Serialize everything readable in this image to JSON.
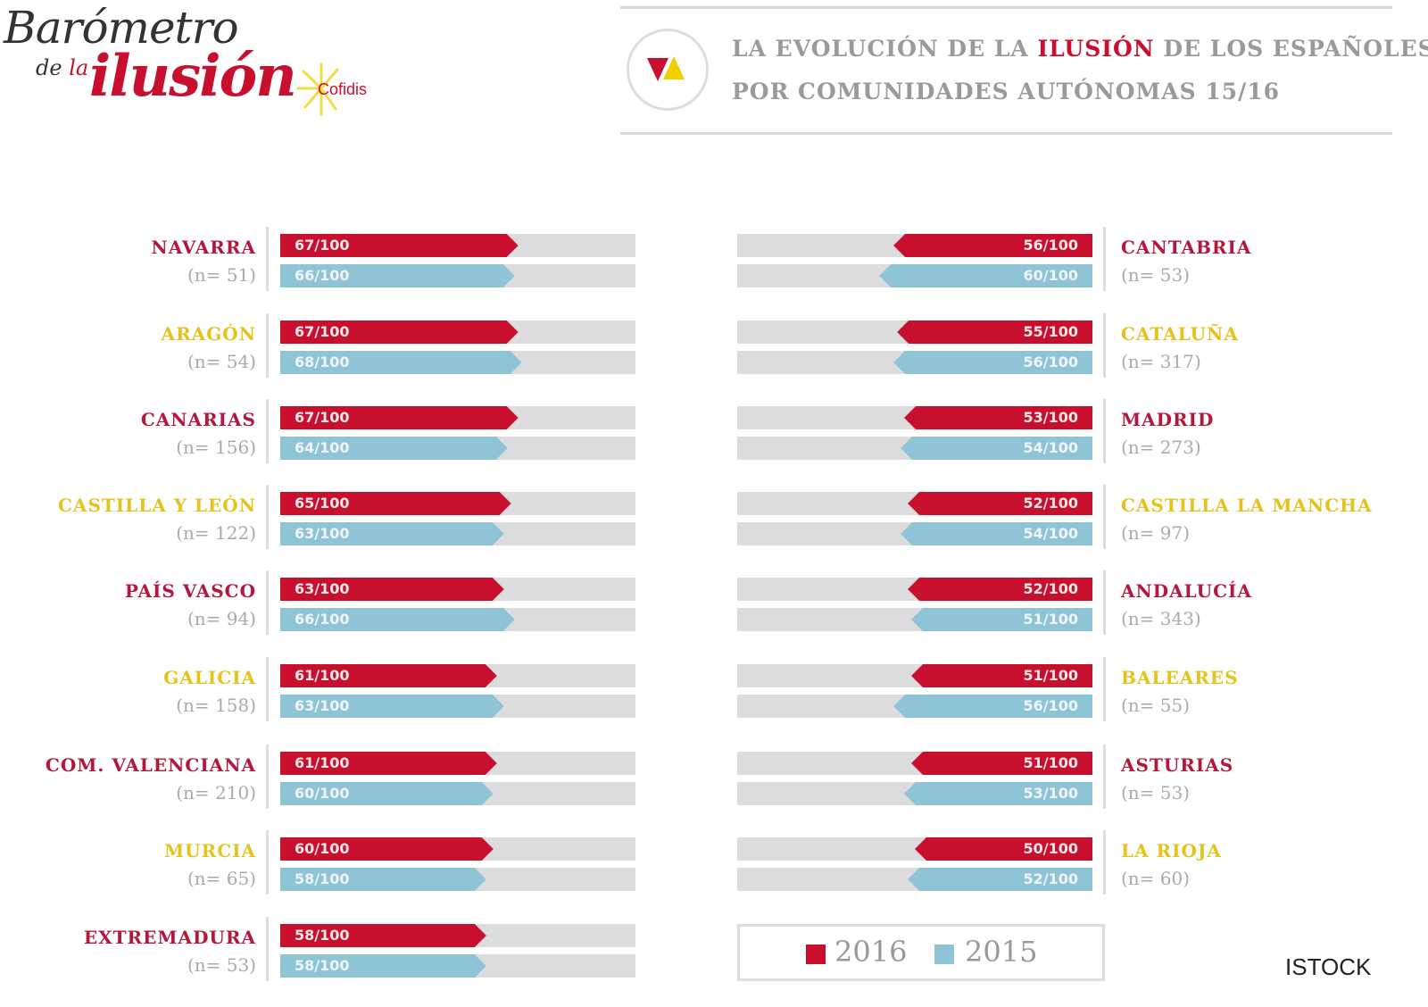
{
  "logo": {
    "line1": "Barómetro",
    "line2a": "de",
    "line2b": "la",
    "line3": "ilusión",
    "sponsor": "Cofidis"
  },
  "header": {
    "title_part1": "LA EVOLUCIÓN DE LA ",
    "title_highlight": "ILUSIÓN",
    "title_part2": " DE LOS ESPAÑOLES",
    "title_line2": "POR COMUNIDADES AUTÓNOMAS 15/16"
  },
  "colors": {
    "series_2016": "#c8102e",
    "series_2015": "#8fc3d6",
    "track": "#dcdcdf",
    "label_red": "#b5173b",
    "label_yellow": "#e6c21c"
  },
  "chart_data": {
    "type": "bar",
    "orientation": "horizontal",
    "xlim": [
      0,
      100
    ],
    "value_suffix": "/100",
    "legend": {
      "placement": "bottom-right",
      "entries": [
        "2016",
        "2015"
      ]
    },
    "series_names": [
      "2016",
      "2015"
    ],
    "left_column": [
      {
        "region": "NAVARRA",
        "n": "(n= 51)",
        "label_color": "red",
        "v2016": 67,
        "v2015": 66
      },
      {
        "region": "ARAGÓN",
        "n": "(n= 54)",
        "label_color": "yellow",
        "v2016": 67,
        "v2015": 68
      },
      {
        "region": "CANARIAS",
        "n": "(n= 156)",
        "label_color": "red",
        "v2016": 67,
        "v2015": 64
      },
      {
        "region": "CASTILLA Y LEÓN",
        "n": "(n= 122)",
        "label_color": "yellow",
        "v2016": 65,
        "v2015": 63
      },
      {
        "region": "PAÍS VASCO",
        "n": "(n= 94)",
        "label_color": "red",
        "v2016": 63,
        "v2015": 66
      },
      {
        "region": "GALICIA",
        "n": "(n= 158)",
        "label_color": "yellow",
        "v2016": 61,
        "v2015": 63
      },
      {
        "region": "COM. VALENCIANA",
        "n": "(n= 210)",
        "label_color": "red",
        "v2016": 61,
        "v2015": 60
      },
      {
        "region": "MURCIA",
        "n": "(n= 65)",
        "label_color": "yellow",
        "v2016": 60,
        "v2015": 58
      },
      {
        "region": "EXTREMADURA",
        "n": "(n= 53)",
        "label_color": "red",
        "v2016": 58,
        "v2015": 58
      }
    ],
    "right_column": [
      {
        "region": "CANTABRIA",
        "n": "(n= 53)",
        "label_color": "red",
        "v2016": 56,
        "v2015": 60
      },
      {
        "region": "CATALUÑA",
        "n": "(n= 317)",
        "label_color": "yellow",
        "v2016": 55,
        "v2015": 56
      },
      {
        "region": "MADRID",
        "n": "(n= 273)",
        "label_color": "red",
        "v2016": 53,
        "v2015": 54
      },
      {
        "region": "CASTILLA LA MANCHA",
        "n": "(n= 97)",
        "label_color": "yellow",
        "v2016": 52,
        "v2015": 54
      },
      {
        "region": "ANDALUCÍA",
        "n": "(n= 343)",
        "label_color": "red",
        "v2016": 52,
        "v2015": 51
      },
      {
        "region": "BALEARES",
        "n": "(n= 55)",
        "label_color": "yellow",
        "v2016": 51,
        "v2015": 56
      },
      {
        "region": "ASTURIAS",
        "n": "(n= 53)",
        "label_color": "red",
        "v2016": 51,
        "v2015": 53
      },
      {
        "region": "LA RIOJA",
        "n": "(n= 60)",
        "label_color": "yellow",
        "v2016": 50,
        "v2015": 52
      }
    ]
  },
  "credit": "ISTOCK"
}
